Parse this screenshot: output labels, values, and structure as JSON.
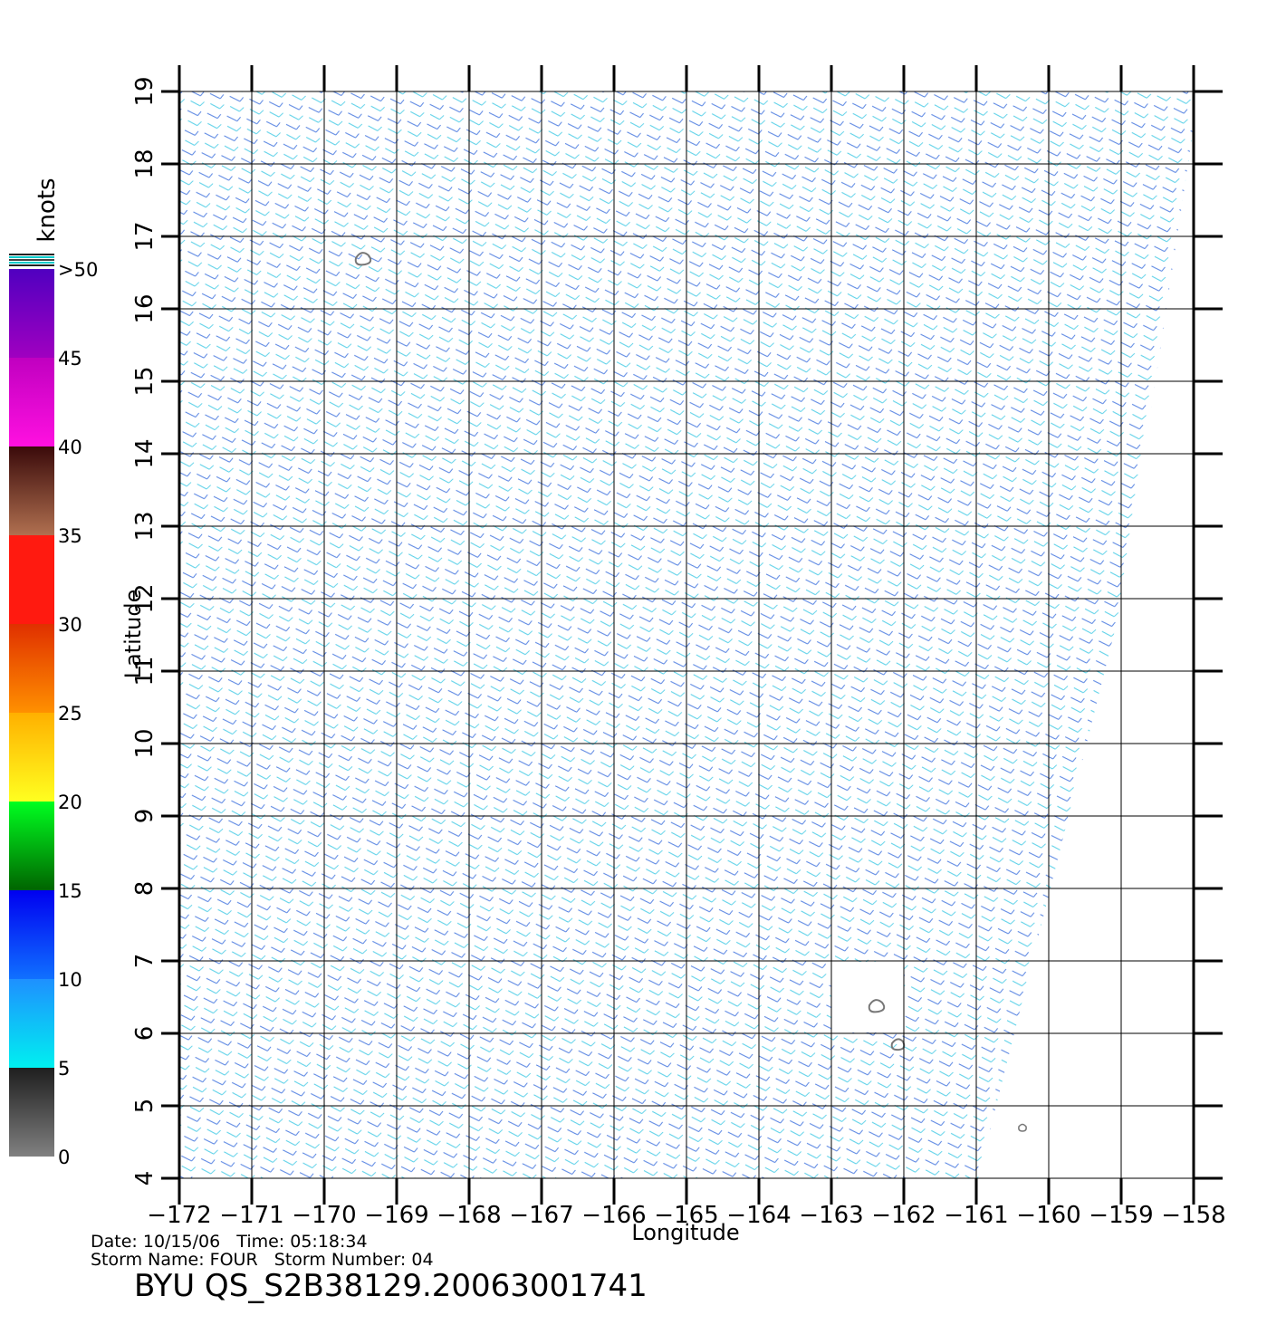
{
  "chart_data": {
    "type": "map",
    "xlabel": "Longitude",
    "ylabel": "Latitude",
    "xlim": [
      -172,
      -158
    ],
    "ylim": [
      4,
      19
    ],
    "xticks": [
      {
        "value": -172,
        "label": "−172"
      },
      {
        "value": -171,
        "label": "−171"
      },
      {
        "value": -170,
        "label": "−170"
      },
      {
        "value": -169,
        "label": "−169"
      },
      {
        "value": -168,
        "label": "−168"
      },
      {
        "value": -167,
        "label": "−167"
      },
      {
        "value": -166,
        "label": "−166"
      },
      {
        "value": -165,
        "label": "−165"
      },
      {
        "value": -164,
        "label": "−164"
      },
      {
        "value": -163,
        "label": "−163"
      },
      {
        "value": -162,
        "label": "−162"
      },
      {
        "value": -161,
        "label": "−161"
      },
      {
        "value": -160,
        "label": "−160"
      },
      {
        "value": -159,
        "label": "−159"
      },
      {
        "value": -158,
        "label": "−158"
      }
    ],
    "yticks": [
      4,
      5,
      6,
      7,
      8,
      9,
      10,
      11,
      12,
      13,
      14,
      15,
      16,
      17,
      18,
      19
    ],
    "grid": true,
    "colorbar": {
      "title": "knots",
      "lim": [
        0,
        50
      ],
      "ticks": [
        0,
        5,
        10,
        15,
        20,
        25,
        30,
        35,
        40,
        45,
        {
          "value": 50,
          "label": ">50"
        }
      ],
      "colors": [
        [
          "#808080",
          "#1e1e1e"
        ],
        [
          "#00f0f0",
          "#1e90ff"
        ],
        [
          "#1070ff",
          "#0000f0"
        ],
        [
          "#006400",
          "#00ff20"
        ],
        [
          "#ffff20",
          "#ffb000"
        ],
        [
          "#ff9000",
          "#e03000"
        ],
        [
          "#ff1a10",
          "#ff1a10"
        ],
        [
          "#b07050",
          "#3a0a0a"
        ],
        [
          "#ff10e0",
          "#c000c0"
        ],
        [
          "#a000c0",
          "#5000c0"
        ]
      ]
    },
    "annotations": [
      "Date: 10/15/06   Time: 05:18:34",
      "Storm Name: FOUR   Storm Number: 04",
      "BYU QS_S2B38129.20063001741"
    ]
  }
}
